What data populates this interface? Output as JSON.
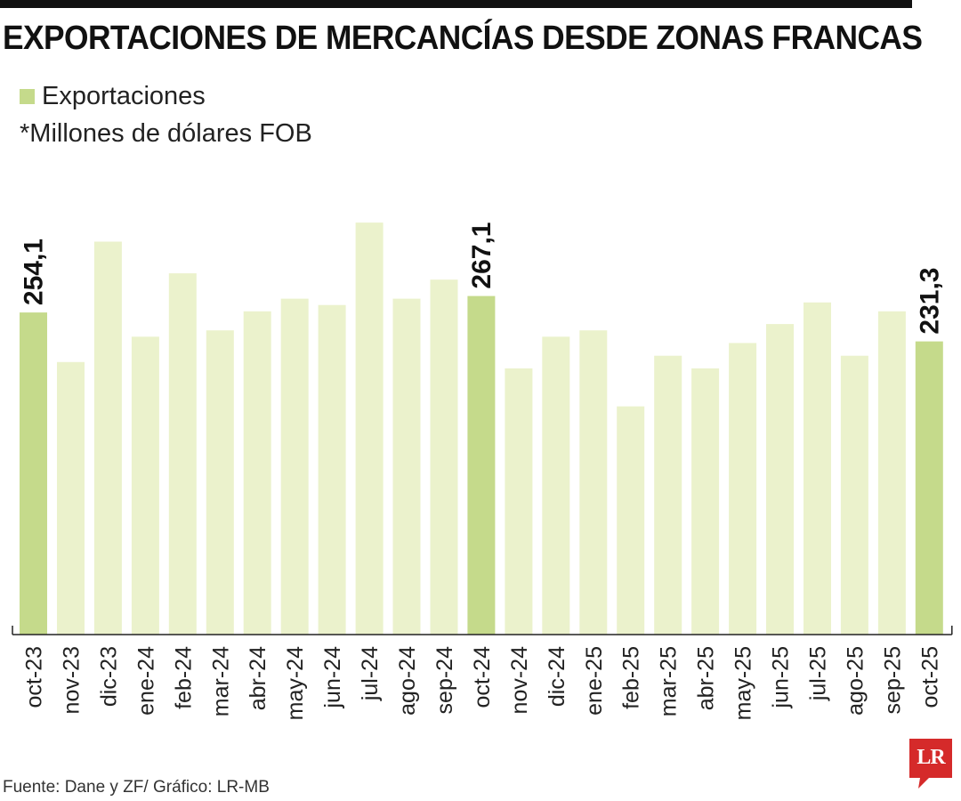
{
  "title": "EXPORTACIONES DE MERCANCÍAS DESDE ZONAS FRANCAS",
  "legend": {
    "label": "Exportaciones",
    "color": "#c5da8b"
  },
  "units_note": "*Millones de dólares FOB",
  "source": "Fuente: Dane y ZF/ Gráfico: LR-MB",
  "logo": {
    "text": "LR",
    "color": "#d52a2a"
  },
  "colors": {
    "highlight": "#c5da8b",
    "regular": "#ebf2cc",
    "axis": "#222222"
  },
  "chart_data": {
    "type": "bar",
    "title": "EXPORTACIONES DE MERCANCÍAS DESDE ZONAS FRANCAS",
    "ylabel": "*Millones de dólares FOB",
    "xlabel": "",
    "ylim": [
      0,
      330
    ],
    "grid": false,
    "categories": [
      "oct-23",
      "nov-23",
      "dic-23",
      "ene-24",
      "feb-24",
      "mar-24",
      "abr-24",
      "may-24",
      "jun-24",
      "jul-24",
      "ago-24",
      "sep-24",
      "oct-24",
      "nov-24",
      "dic-24",
      "ene-25",
      "feb-25",
      "mar-25",
      "abr-25",
      "may-25",
      "jun-25",
      "jul-25",
      "ago-25",
      "sep-25",
      "oct-25"
    ],
    "values": [
      254.1,
      215,
      310,
      235,
      285,
      240,
      255,
      265,
      260,
      325,
      265,
      280,
      267.1,
      210,
      235,
      240,
      180,
      220,
      210,
      230,
      245,
      262,
      220,
      255,
      231.3
    ],
    "highlight": [
      true,
      false,
      false,
      false,
      false,
      false,
      false,
      false,
      false,
      false,
      false,
      false,
      true,
      false,
      false,
      false,
      false,
      false,
      false,
      false,
      false,
      false,
      false,
      false,
      true
    ],
    "data_labels": [
      "254,1",
      "",
      "",
      "",
      "",
      "",
      "",
      "",
      "",
      "",
      "",
      "",
      "267,1",
      "",
      "",
      "",
      "",
      "",
      "",
      "",
      "",
      "",
      "",
      "",
      "231,3"
    ]
  }
}
